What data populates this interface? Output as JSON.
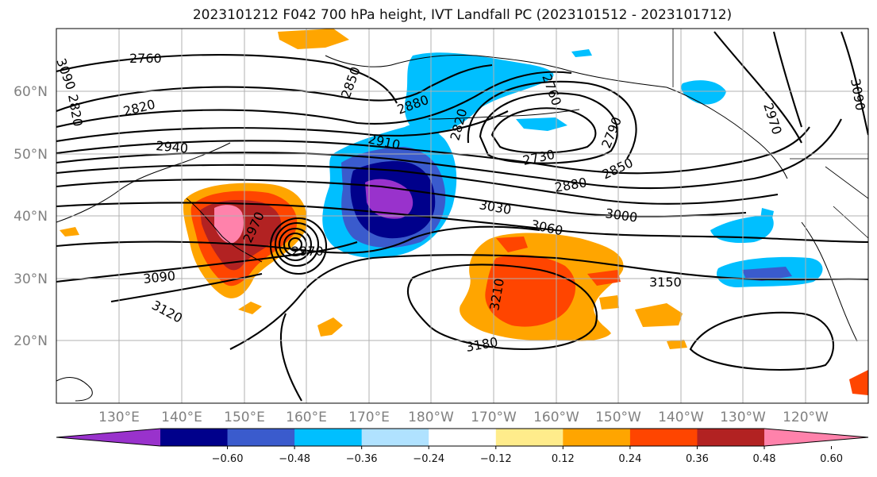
{
  "title": "2023101212 F042 700 hPa height, IVT Landfall PC (2023101512 - 2023101712)",
  "lat_labels": [
    "60°N",
    "50°N",
    "40°N",
    "30°N",
    "20°N"
  ],
  "lon_labels": [
    "130°E",
    "140°E",
    "150°E",
    "160°E",
    "170°E",
    "180°W",
    "170°W",
    "160°W",
    "150°W",
    "140°W",
    "130°W",
    "120°W"
  ],
  "colorbar": {
    "ticks": [
      "−0.60",
      "−0.48",
      "−0.36",
      "−0.24",
      "−0.12",
      "0.12",
      "0.24",
      "0.36",
      "0.48",
      "0.60"
    ],
    "colors": [
      "#9932cc",
      "#00008b",
      "#3a5bcd",
      "#00bfff",
      "#b0e2ff",
      "#ffffff",
      "#ffec8b",
      "#ffa500",
      "#ff4500",
      "#b22222",
      "#ff82ab"
    ]
  },
  "contour_labels": [
    "2760",
    "2820",
    "2820",
    "2850",
    "2880",
    "2910",
    "2940",
    "2820",
    "2730",
    "2790",
    "2850",
    "2880",
    "2760",
    "2970",
    "3090",
    "3030",
    "3060",
    "3000",
    "2970",
    "2970",
    "3090",
    "3120",
    "3210",
    "3180",
    "3150",
    "3090"
  ]
}
